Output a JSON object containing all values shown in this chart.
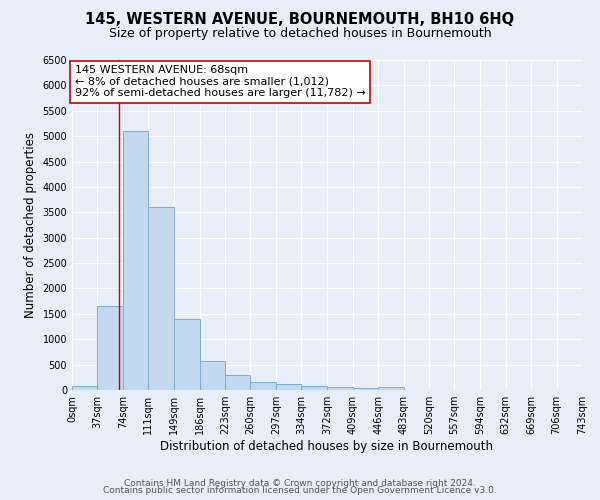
{
  "title": "145, WESTERN AVENUE, BOURNEMOUTH, BH10 6HQ",
  "subtitle": "Size of property relative to detached houses in Bournemouth",
  "xlabel": "Distribution of detached houses by size in Bournemouth",
  "ylabel": "Number of detached properties",
  "bar_color": "#c5d9ee",
  "bar_edge_color": "#7aafd4",
  "bin_edges": [
    0,
    37,
    74,
    111,
    149,
    186,
    223,
    260,
    297,
    334,
    372,
    409,
    446,
    483,
    520,
    557,
    594,
    632,
    669,
    706,
    743
  ],
  "bar_heights": [
    75,
    1650,
    5100,
    3600,
    1400,
    580,
    300,
    150,
    110,
    80,
    50,
    35,
    50,
    0,
    0,
    0,
    0,
    0,
    0,
    0
  ],
  "property_size": 68,
  "red_line_color": "#cc0000",
  "annotation_line1": "145 WESTERN AVENUE: 68sqm",
  "annotation_line2": "← 8% of detached houses are smaller (1,012)",
  "annotation_line3": "92% of semi-detached houses are larger (11,782) →",
  "annotation_box_color": "#ffffff",
  "annotation_box_edge_color": "#cc0000",
  "ylim": [
    0,
    6500
  ],
  "yticks": [
    0,
    500,
    1000,
    1500,
    2000,
    2500,
    3000,
    3500,
    4000,
    4500,
    5000,
    5500,
    6000,
    6500
  ],
  "xtick_labels": [
    "0sqm",
    "37sqm",
    "74sqm",
    "111sqm",
    "149sqm",
    "186sqm",
    "223sqm",
    "260sqm",
    "297sqm",
    "334sqm",
    "372sqm",
    "409sqm",
    "446sqm",
    "483sqm",
    "520sqm",
    "557sqm",
    "594sqm",
    "632sqm",
    "669sqm",
    "706sqm",
    "743sqm"
  ],
  "footer_line1": "Contains HM Land Registry data © Crown copyright and database right 2024.",
  "footer_line2": "Contains public sector information licensed under the Open Government Licence v3.0.",
  "background_color": "#e8eef8",
  "grid_color": "#ffffff",
  "title_fontsize": 10.5,
  "subtitle_fontsize": 9,
  "axis_label_fontsize": 8.5,
  "tick_fontsize": 7,
  "annotation_fontsize": 8,
  "footer_fontsize": 6.5
}
